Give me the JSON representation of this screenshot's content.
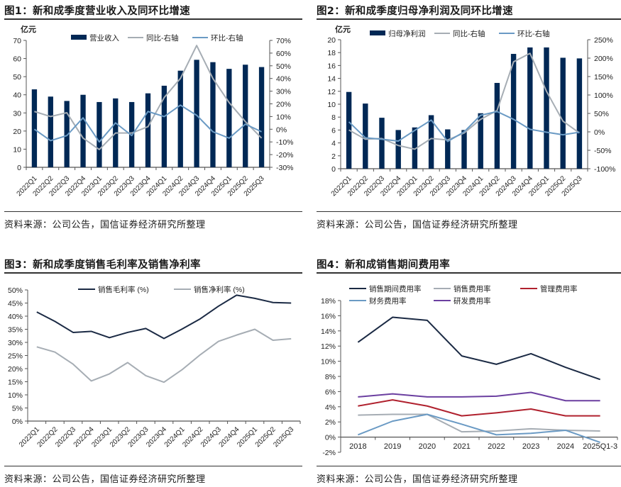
{
  "source_label": "资料来源：公司公告，国信证券经济研究所整理",
  "chart_data": [
    {
      "id": "fig1",
      "type": "bar",
      "title": "图1：新和成季度营业收入及同环比增速",
      "ylabel": "亿元",
      "ylim": [
        0,
        70
      ],
      "yticks": [
        "0",
        "10",
        "20",
        "30",
        "40",
        "50",
        "60",
        "70"
      ],
      "y2lim": [
        -30,
        70
      ],
      "y2ticks": [
        "-30%",
        "-20%",
        "-10%",
        "0%",
        "10%",
        "20%",
        "30%",
        "40%",
        "50%",
        "60%",
        "70%"
      ],
      "categories": [
        "2022Q1",
        "2022Q2",
        "2022Q3",
        "2022Q4",
        "2023Q1",
        "2023Q2",
        "2023Q3",
        "2023Q4",
        "2024Q1",
        "2024Q2",
        "2024Q3",
        "2024Q4",
        "2025Q1",
        "2025Q2",
        "2025Q3"
      ],
      "series": [
        {
          "name": "营业收入",
          "kind": "bar",
          "axis": "left",
          "color": "#002855",
          "values": [
            43.0,
            39.0,
            36.6,
            40.0,
            36.0,
            38.0,
            36.0,
            40.8,
            45.0,
            53.3,
            59.3,
            58.0,
            54.3,
            56.6,
            55.3
          ]
        },
        {
          "name": "同比-右轴",
          "kind": "line",
          "axis": "right",
          "color": "#a6adb4",
          "values": [
            14,
            10,
            13,
            -7,
            -16,
            -3,
            -3,
            2,
            25,
            40,
            66,
            40,
            21,
            6,
            -7
          ]
        },
        {
          "name": "环比-右轴",
          "kind": "line",
          "axis": "right",
          "color": "#6a9ac4",
          "values": [
            0,
            -9,
            -5,
            9,
            -10,
            5,
            -5,
            14,
            10,
            19,
            11,
            -2,
            -7,
            4,
            -2
          ]
        }
      ],
      "legend": "top"
    },
    {
      "id": "fig2",
      "type": "bar",
      "title": "图2：新和成季度归母净利润及同环比增速",
      "ylabel": "亿元",
      "ylim": [
        0,
        20
      ],
      "yticks": [
        "0",
        "2",
        "4",
        "6",
        "8",
        "10",
        "12",
        "14",
        "16",
        "18",
        "20"
      ],
      "y2lim": [
        -100,
        250
      ],
      "y2ticks": [
        "-100%",
        "-50%",
        "0%",
        "50%",
        "100%",
        "150%",
        "200%",
        "250%"
      ],
      "categories": [
        "2022Q1",
        "2022Q2",
        "2022Q3",
        "2022Q4",
        "2023Q1",
        "2023Q2",
        "2023Q3",
        "2023Q4",
        "2024Q1",
        "2024Q2",
        "2024Q3",
        "2024Q4",
        "2025Q1",
        "2025Q2",
        "2025Q3"
      ],
      "series": [
        {
          "name": "归母净利润",
          "kind": "bar",
          "axis": "left",
          "color": "#002855",
          "values": [
            11.9,
            10.1,
            7.9,
            6.0,
            6.4,
            8.3,
            6.1,
            6.0,
            8.6,
            13.3,
            17.8,
            18.8,
            18.8,
            17.2,
            17.1
          ]
        },
        {
          "name": "同比-右轴",
          "kind": "line",
          "axis": "right",
          "color": "#a6adb4",
          "values": [
            5,
            -20,
            -18,
            -37,
            -47,
            -18,
            -22,
            -3,
            34,
            58,
            190,
            213,
            110,
            29,
            -3
          ]
        },
        {
          "name": "环比-右轴",
          "kind": "line",
          "axis": "right",
          "color": "#6a9ac4",
          "values": [
            27,
            -16,
            -20,
            -25,
            4,
            32,
            -26,
            0,
            45,
            55,
            34,
            7,
            -1,
            -8,
            -1
          ]
        }
      ],
      "legend": "top"
    },
    {
      "id": "fig3",
      "type": "line",
      "title": "图3：新和成季度销售毛利率及销售净利率",
      "ylim": [
        0,
        50
      ],
      "yticks": [
        "0%",
        "5%",
        "10%",
        "15%",
        "20%",
        "25%",
        "30%",
        "35%",
        "40%",
        "45%",
        "50%"
      ],
      "categories": [
        "2022Q1",
        "2022Q2",
        "2022Q3",
        "2022Q4",
        "2023Q1",
        "2023Q2",
        "2023Q3",
        "2023Q4",
        "2024Q1",
        "2024Q2",
        "2024Q3",
        "2024Q4",
        "2025Q1",
        "2025Q2",
        "2025Q3"
      ],
      "series": [
        {
          "name": "销售毛利率 (%)",
          "color": "#1b2a44",
          "values": [
            41.6,
            38.0,
            33.8,
            34.2,
            31.8,
            33.8,
            35.3,
            31.5,
            35.1,
            39.0,
            43.8,
            48.0,
            46.8,
            45.2,
            45.0
          ]
        },
        {
          "name": "销售净利率 (%)",
          "color": "#a6adb4",
          "values": [
            28.3,
            26.3,
            21.7,
            15.3,
            18.0,
            22.3,
            17.3,
            14.8,
            19.6,
            25.3,
            30.4,
            32.8,
            35.0,
            30.8,
            31.4
          ]
        }
      ],
      "legend": "top"
    },
    {
      "id": "fig4",
      "type": "line",
      "title": "图4：新和成销售期间费用率",
      "ylim": [
        -2,
        18
      ],
      "yticks": [
        "-2%",
        "0%",
        "2%",
        "4%",
        "6%",
        "8%",
        "10%",
        "12%",
        "14%",
        "16%",
        "18%"
      ],
      "categories": [
        "2018",
        "2019",
        "2020",
        "2021",
        "2022",
        "2023",
        "2024",
        "2025Q1-3"
      ],
      "series": [
        {
          "name": "销售期间费用率",
          "color": "#1b2a44",
          "values": [
            12.5,
            15.8,
            15.4,
            10.7,
            9.6,
            11.0,
            9.2,
            7.6
          ]
        },
        {
          "name": "销售费用率",
          "color": "#a6adb4",
          "values": [
            2.9,
            3.0,
            3.0,
            0.7,
            0.8,
            1.1,
            0.9,
            0.8
          ]
        },
        {
          "name": "管理费用率",
          "color": "#b0212e",
          "values": [
            4.1,
            4.9,
            4.1,
            2.8,
            3.2,
            3.7,
            2.8,
            2.8
          ]
        },
        {
          "name": "财务费用率",
          "color": "#6a9ac4",
          "values": [
            0.3,
            2.1,
            3.0,
            1.7,
            0.3,
            0.5,
            0.9,
            -0.7
          ]
        },
        {
          "name": "研发费用率",
          "color": "#6b3fa0",
          "values": [
            5.3,
            5.7,
            5.3,
            5.3,
            5.4,
            5.9,
            4.8,
            4.8
          ]
        }
      ],
      "legend": "top"
    }
  ]
}
